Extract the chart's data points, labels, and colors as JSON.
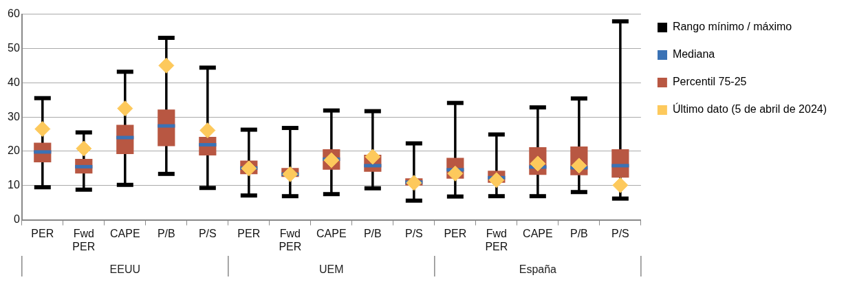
{
  "chart_data": {
    "type": "box",
    "categories": [
      "PER",
      "Fwd PER",
      "CAPE",
      "P/B",
      "P/S",
      "PER",
      "Fwd PER",
      "CAPE",
      "P/B",
      "P/S",
      "PER",
      "Fwd PER",
      "CAPE",
      "P/B",
      "P/S"
    ],
    "annotations": [
      "Rango mínimo / máximo",
      "Mediana",
      "EEUU",
      "UEM",
      "España"
    ],
    "ylim": [
      0,
      60
    ],
    "yticks": [
      0,
      10,
      20,
      30,
      40,
      50,
      60
    ],
    "grid": "y",
    "legend": "top right",
    "series": [
      {
        "name": "Percentil 75-25",
        "color": "#b85742",
        "boxes": [
          {
            "low": 9.5,
            "q1": 16.8,
            "median": 19.8,
            "q3": 22.5,
            "high": 35.5
          },
          {
            "low": 8.8,
            "q1": 13.5,
            "median": 15.5,
            "q3": 17.8,
            "high": 25.5
          },
          {
            "low": 10.2,
            "q1": 19.2,
            "median": 24,
            "q3": 27.7,
            "high": 43.2
          },
          {
            "low": 13.4,
            "q1": 21.5,
            "median": 27.4,
            "q3": 32.2,
            "high": 53.1
          },
          {
            "low": 9.3,
            "q1": 18.8,
            "median": 21.9,
            "q3": 24.2,
            "high": 44.4
          },
          {
            "low": 7.1,
            "q1": 13.3,
            "median": 15.1,
            "q3": 17.3,
            "high": 26.3
          },
          {
            "low": 6.9,
            "q1": 12.5,
            "median": 13.3,
            "q3": 15.1,
            "high": 26.8
          },
          {
            "low": 7.5,
            "q1": 14.6,
            "median": 17.7,
            "q3": 20.6,
            "high": 31.9
          },
          {
            "low": 9.2,
            "q1": 14,
            "median": 15.8,
            "q3": 19,
            "high": 31.7
          },
          {
            "low": 5.6,
            "q1": 10,
            "median": 11,
            "q3": 12.1,
            "high": 22.3
          },
          {
            "low": 6.8,
            "q1": 12,
            "median": 14.6,
            "q3": 18.1,
            "high": 34.1
          },
          {
            "low": 6.9,
            "q1": 10.8,
            "median": 12.3,
            "q3": 14.3,
            "high": 24.9
          },
          {
            "low": 6.9,
            "q1": 13.1,
            "median": 15.4,
            "q3": 21.2,
            "high": 32.8
          },
          {
            "low": 8.1,
            "q1": 13,
            "median": 15.2,
            "q3": 21.4,
            "high": 35.4
          },
          {
            "low": 6.2,
            "q1": 12.3,
            "median": 15.8,
            "q3": 20.6,
            "high": 57.9
          }
        ]
      },
      {
        "type": "scatter",
        "name": "Último dato (5 de abril de 2024)",
        "color": "#fdc95c",
        "marker": "diamond",
        "values": [
          26.5,
          20.8,
          32.5,
          45,
          26.1,
          15,
          13.3,
          17.4,
          18.4,
          10.8,
          13.5,
          11.6,
          16.4,
          15.8,
          10.1
        ]
      }
    ]
  }
}
